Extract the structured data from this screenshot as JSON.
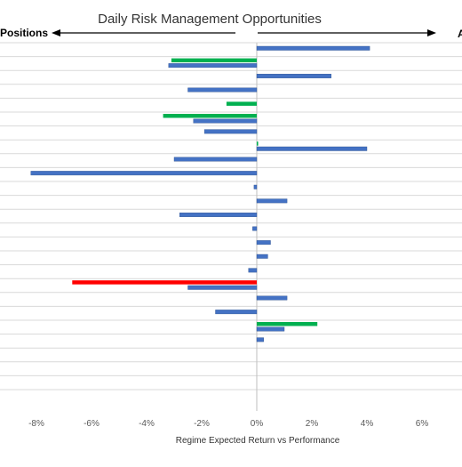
{
  "chart_data": {
    "type": "bar",
    "orientation": "horizontal",
    "title": "Daily Risk Management Opportunities",
    "left_header": "Positions",
    "right_header": "A",
    "xlabel": "Regime Expected Return vs Performance",
    "ylabel": "",
    "xlim": [
      -9,
      7
    ],
    "x_ticks": [
      -8,
      -6,
      -4,
      -2,
      0,
      2,
      4,
      6
    ],
    "x_tick_labels": [
      "-8%",
      "-6%",
      "-4%",
      "-2%",
      "0%",
      "2%",
      "4%",
      "6%"
    ],
    "grid": true,
    "colors": {
      "blue": "#4472C4",
      "green": "#00B050",
      "red": "#FF0000"
    },
    "bars": [
      {
        "row": 0,
        "value": 4.1,
        "color": "blue"
      },
      {
        "row": 1,
        "value": -3.1,
        "color": "green"
      },
      {
        "row": 1,
        "value": -3.2,
        "color": "blue"
      },
      {
        "row": 2,
        "value": 2.7,
        "color": "blue"
      },
      {
        "row": 3,
        "value": -2.5,
        "color": "blue"
      },
      {
        "row": 4,
        "value": -1.1,
        "color": "green"
      },
      {
        "row": 5,
        "value": -3.4,
        "color": "green"
      },
      {
        "row": 5,
        "value": -2.3,
        "color": "blue"
      },
      {
        "row": 6,
        "value": -1.9,
        "color": "blue"
      },
      {
        "row": 7,
        "value": 0.05,
        "color": "green"
      },
      {
        "row": 7,
        "value": 4.0,
        "color": "blue"
      },
      {
        "row": 8,
        "value": -3.0,
        "color": "blue"
      },
      {
        "row": 9,
        "value": -8.2,
        "color": "blue"
      },
      {
        "row": 10,
        "value": -0.1,
        "color": "blue"
      },
      {
        "row": 11,
        "value": 1.1,
        "color": "blue"
      },
      {
        "row": 12,
        "value": -2.8,
        "color": "blue"
      },
      {
        "row": 13,
        "value": -0.15,
        "color": "blue"
      },
      {
        "row": 14,
        "value": 0.5,
        "color": "blue"
      },
      {
        "row": 15,
        "value": 0.4,
        "color": "blue"
      },
      {
        "row": 16,
        "value": -0.3,
        "color": "blue"
      },
      {
        "row": 17,
        "value": -6.7,
        "color": "red"
      },
      {
        "row": 17,
        "value": -2.5,
        "color": "blue"
      },
      {
        "row": 18,
        "value": 1.1,
        "color": "blue"
      },
      {
        "row": 19,
        "value": -1.5,
        "color": "blue"
      },
      {
        "row": 20,
        "value": 2.2,
        "color": "green"
      },
      {
        "row": 20,
        "value": 1.0,
        "color": "blue"
      },
      {
        "row": 21,
        "value": 0.25,
        "color": "blue"
      }
    ]
  }
}
